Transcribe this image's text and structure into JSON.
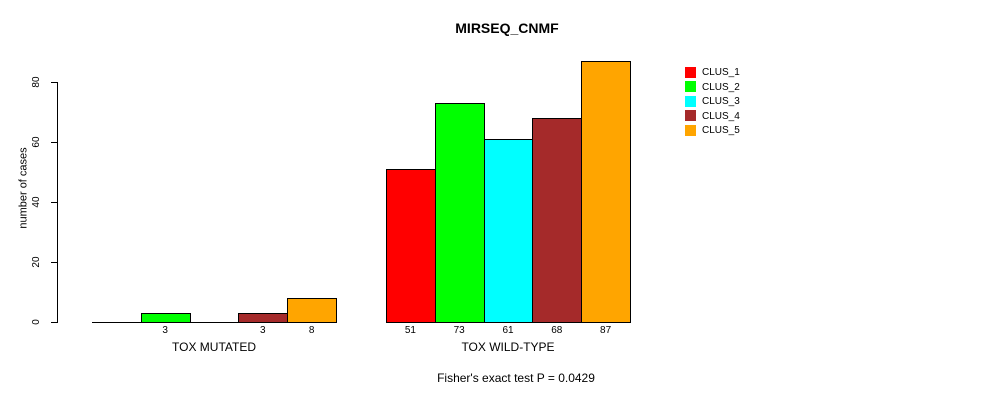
{
  "chart_data": {
    "type": "bar",
    "title": "MIRSEQ_CNMF",
    "ylabel": "number of cases",
    "xlabel": "",
    "annotation": "Fisher's exact test P = 0.0429",
    "yticks": [
      0,
      20,
      40,
      60,
      80
    ],
    "ylim": [
      0,
      87
    ],
    "grid": false,
    "legend_position": "right",
    "series": [
      "CLUS_1",
      "CLUS_2",
      "CLUS_3",
      "CLUS_4",
      "CLUS_5"
    ],
    "series_colors": [
      "#FF0000",
      "#00FF00",
      "#00FFFF",
      "#A52A2A",
      "#FFA500"
    ],
    "groups": [
      {
        "label": "TOX MUTATED",
        "values": [
          0,
          3,
          0,
          3,
          8
        ],
        "bar_labels": [
          "",
          "3",
          "",
          "3",
          "8"
        ]
      },
      {
        "label": "TOX WILD-TYPE",
        "values": [
          51,
          73,
          61,
          68,
          87
        ],
        "bar_labels": [
          "51",
          "73",
          "61",
          "68",
          "87"
        ]
      }
    ]
  }
}
